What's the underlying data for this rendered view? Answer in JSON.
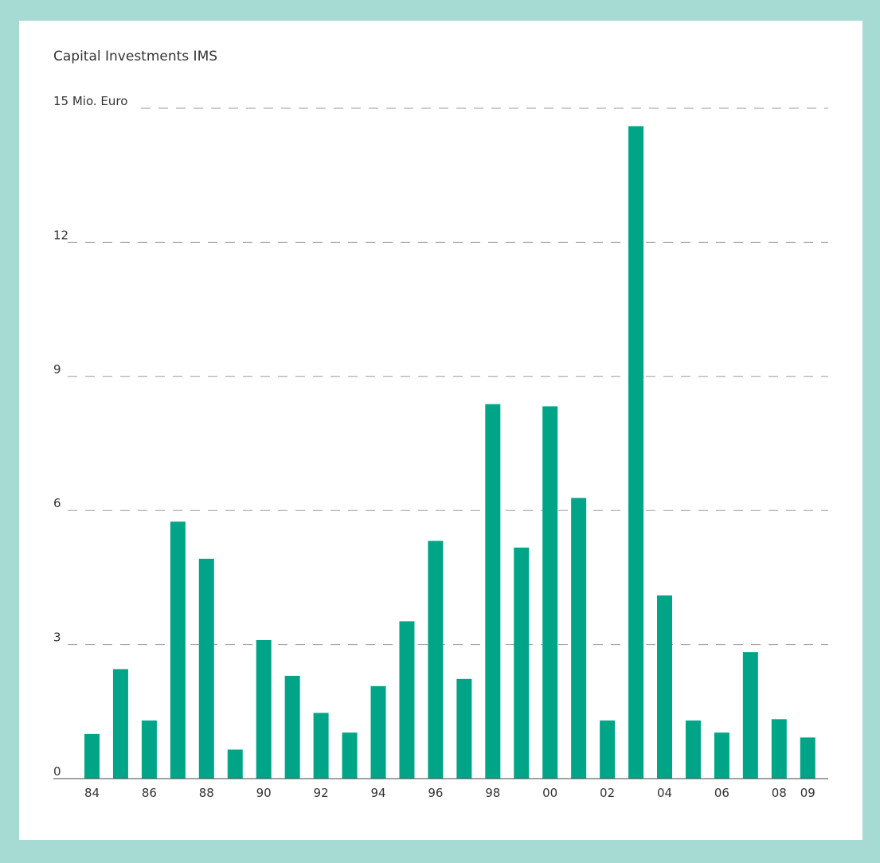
{
  "chart_data": {
    "type": "bar",
    "title": "Capital Investments IMS",
    "ylabel": "",
    "xlabel": "",
    "ylim": [
      0,
      15
    ],
    "yticks": [
      {
        "value": 0,
        "label": "0"
      },
      {
        "value": 3,
        "label": "3"
      },
      {
        "value": 6,
        "label": "6"
      },
      {
        "value": 9,
        "label": "9"
      },
      {
        "value": 12,
        "label": "12"
      },
      {
        "value": 15,
        "label": "15 Mio. Euro"
      }
    ],
    "categories": [
      "84",
      "85",
      "86",
      "87",
      "88",
      "89",
      "90",
      "91",
      "92",
      "93",
      "94",
      "95",
      "96",
      "97",
      "98",
      "99",
      "00",
      "01",
      "02",
      "03",
      "04",
      "05",
      "06",
      "07",
      "08",
      "09"
    ],
    "xtick_labels": [
      "84",
      "",
      "86",
      "",
      "88",
      "",
      "90",
      "",
      "92",
      "",
      "94",
      "",
      "96",
      "",
      "98",
      "",
      "00",
      "",
      "02",
      "",
      "04",
      "",
      "06",
      "",
      "08",
      "09"
    ],
    "values": [
      1.0,
      2.45,
      1.3,
      5.75,
      4.92,
      0.65,
      3.1,
      2.3,
      1.47,
      1.03,
      2.07,
      3.52,
      5.32,
      2.23,
      8.38,
      5.17,
      8.33,
      6.28,
      1.3,
      14.6,
      4.1,
      1.3,
      1.03,
      2.83,
      1.33,
      0.92
    ],
    "grid": "dashed-horizontal",
    "colors": {
      "bar": "#00a587",
      "grid": "#999999",
      "axis": "#444444",
      "frame": "#a5dbd3"
    }
  }
}
